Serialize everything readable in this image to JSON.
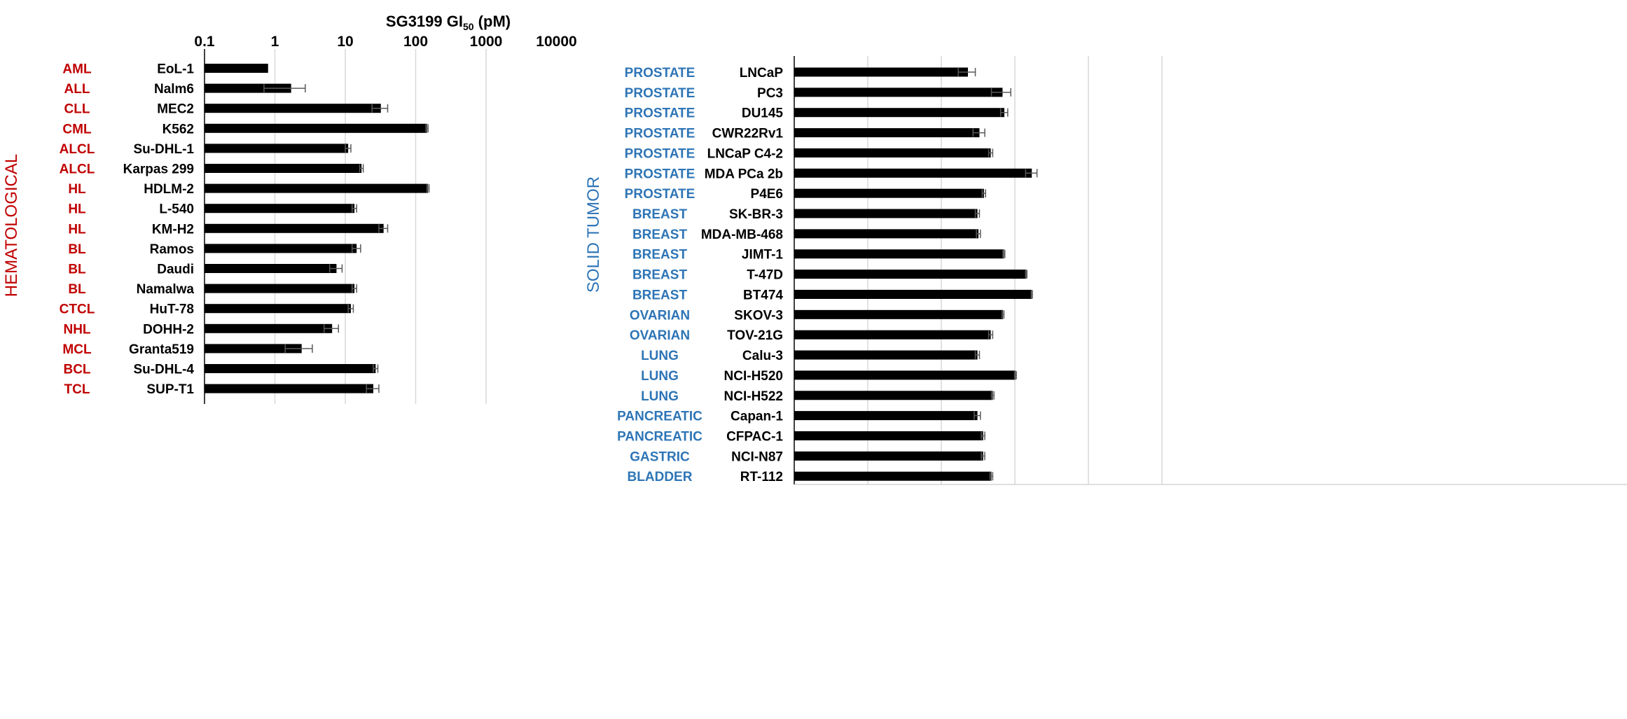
{
  "chart_data": [
    {
      "type": "bar",
      "orientation": "horizontal",
      "title": "SG3199 GI",
      "title_subscript": "50",
      "title_suffix": " (pM)",
      "group_label": "HEMATOLOGICAL",
      "x_scale": "log",
      "xlim": [
        0.1,
        10000
      ],
      "x_ticks": [
        "0.1",
        "1",
        "10",
        "100",
        "1000",
        "10000"
      ],
      "x_tick_values": [
        0.1,
        1,
        10,
        100,
        1000,
        10000
      ],
      "grid": "vertical",
      "colors": {
        "bar": "#000000",
        "category": "#c00000",
        "errorbar": "#595959"
      },
      "categories": [
        "AML",
        "ALL",
        "CLL",
        "CML",
        "ALCL",
        "ALCL",
        "HL",
        "HL",
        "HL",
        "BL",
        "BL",
        "BL",
        "CTCL",
        "NHL",
        "MCL",
        "BCL",
        "TCL"
      ],
      "cell_lines": [
        "EoL-1",
        "Nalm6",
        "MEC2",
        "K562",
        "Su-DHL-1",
        "Karpas 299",
        "HDLM-2",
        "L-540",
        "KM-H2",
        "Ramos",
        "Daudi",
        "Namalwa",
        "HuT-78",
        "DOHH-2",
        "Granta519",
        "Su-DHL-4",
        "SUP-T1"
      ],
      "values": [
        0.8,
        1.7,
        32,
        145,
        11,
        17,
        150,
        13.5,
        35,
        14.5,
        7.5,
        13.5,
        12,
        6.5,
        2.4,
        27,
        25
      ],
      "errors": [
        0,
        1,
        8,
        5,
        1,
        1,
        5,
        1,
        5,
        2,
        1.5,
        1,
        1,
        1.5,
        1,
        2,
        5
      ]
    },
    {
      "type": "bar",
      "orientation": "horizontal",
      "group_label": "SOLID TUMOR",
      "x_scale": "log",
      "grid": "vertical",
      "colors": {
        "bar": "#000000",
        "category": "#2e75b6",
        "errorbar": "#595959"
      },
      "categories": [
        "PROSTATE",
        "PROSTATE",
        "PROSTATE",
        "PROSTATE",
        "PROSTATE",
        "PROSTATE",
        "PROSTATE",
        "BREAST",
        "BREAST",
        "BREAST",
        "BREAST",
        "BREAST",
        "OVARIAN",
        "OVARIAN",
        "LUNG",
        "LUNG",
        "LUNG",
        "PANCREATIC",
        "PANCREATIC",
        "GASTRIC",
        "BLADDER"
      ],
      "cell_lines": [
        "LNCaP",
        "PC3",
        "DU145",
        "CWR22Rv1",
        "LNCaP C4-2",
        "MDA PCa 2b",
        "P4E6",
        "SK-BR-3",
        "MDA-MB-468",
        "JIMT-1",
        "T-47D",
        "BT474",
        "SKOV-3",
        "TOV-21G",
        "Calu-3",
        "NCI-H520",
        "NCI-H522",
        "Capan-1",
        "CFPAC-1",
        "NCI-N87",
        "RT-112"
      ],
      "values": [
        23,
        68,
        72,
        33,
        47,
        170,
        38,
        31,
        32,
        71,
        143,
        170,
        69,
        47,
        31,
        102,
        50,
        31,
        37,
        37,
        48
      ],
      "errors": [
        6,
        20,
        8,
        6,
        3,
        30,
        2,
        2,
        2,
        2,
        3,
        3,
        2,
        3,
        2,
        3,
        2,
        3,
        2,
        2,
        2
      ]
    }
  ]
}
